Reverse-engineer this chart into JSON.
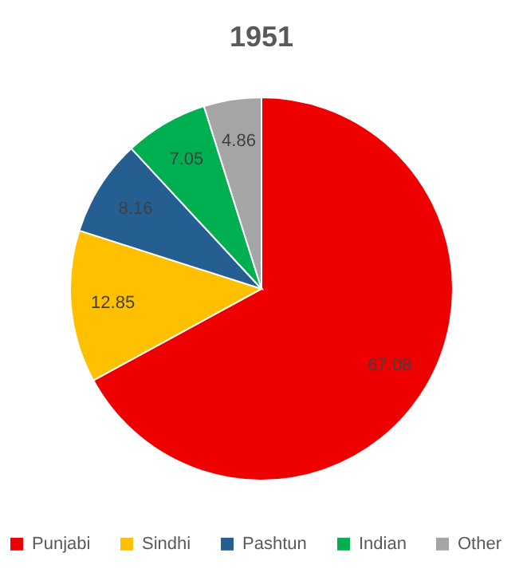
{
  "chart_data": {
    "type": "pie",
    "title": "1951",
    "categories": [
      "Punjabi",
      "Sindhi",
      "Pashtun",
      "Indian",
      "Other"
    ],
    "values": [
      67.08,
      12.85,
      8.16,
      7.05,
      4.86
    ],
    "colors": [
      "#ee0000",
      "#ffc000",
      "#255e91",
      "#00b050",
      "#a5a5a5"
    ],
    "data_labels": true,
    "legend": "bottom"
  }
}
